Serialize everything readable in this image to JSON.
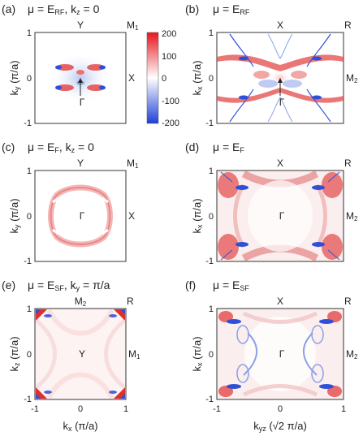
{
  "figure": {
    "panels": [
      {
        "id": "a",
        "tag": "(a)",
        "title_sym": "μ = E",
        "title_sub": "RF",
        "title_extra": ", k",
        "title_extra_sub": "z",
        "title_tail": " = 0",
        "top_center": "Y",
        "top_right": "M",
        "top_right_sub": "1",
        "right_mid": "X",
        "center": "Γ",
        "ylabel": "k",
        "ylabel_sub": "y",
        "ylabel_tail": " (π/a)",
        "arrow": true
      },
      {
        "id": "b",
        "tag": "(b)",
        "title_sym": "μ = E",
        "title_sub": "RF",
        "title_extra": "",
        "title_extra_sub": "",
        "title_tail": "",
        "top_center": "X",
        "top_right": "R",
        "top_right_sub": "",
        "right_mid": "M",
        "right_mid_sub": "2",
        "center": "Γ",
        "ylabel": "k",
        "ylabel_sub": "x",
        "ylabel_tail": " (π/a)",
        "arrow": true
      },
      {
        "id": "c",
        "tag": "(c)",
        "title_sym": "μ = E",
        "title_sub": "F",
        "title_extra": ", k",
        "title_extra_sub": "z",
        "title_tail": " = 0",
        "top_center": "Y",
        "top_right": "M",
        "top_right_sub": "1",
        "right_mid": "X",
        "center": "Γ",
        "ylabel": "k",
        "ylabel_sub": "y",
        "ylabel_tail": " (π/a)"
      },
      {
        "id": "d",
        "tag": "(d)",
        "title_sym": "μ = E",
        "title_sub": "F",
        "title_extra": "",
        "title_extra_sub": "",
        "title_tail": "",
        "top_center": "X",
        "top_right": "R",
        "top_right_sub": "",
        "right_mid": "M",
        "right_mid_sub": "2",
        "center": "Γ",
        "ylabel": "k",
        "ylabel_sub": "x",
        "ylabel_tail": " (π/a)"
      },
      {
        "id": "e",
        "tag": "(e)",
        "title_sym": "μ = E",
        "title_sub": "SF",
        "title_extra": ", k",
        "title_extra_sub": "y",
        "title_tail": " = π/a",
        "top_center": "M",
        "top_center_sub": "2",
        "top_right": "R",
        "top_right_sub": "",
        "right_mid": "M",
        "right_mid_sub": "1",
        "center": "Y",
        "ylabel": "k",
        "ylabel_sub": "z",
        "ylabel_tail": " (π/a)"
      },
      {
        "id": "f",
        "tag": "(f)",
        "title_sym": "μ = E",
        "title_sub": "SF",
        "title_extra": "",
        "title_extra_sub": "",
        "title_tail": "",
        "top_center": "X",
        "top_right": "R",
        "top_right_sub": "",
        "right_mid": "M",
        "right_mid_sub": "2",
        "center": "Γ",
        "ylabel": "k",
        "ylabel_sub": "x",
        "ylabel_tail": " (π/a)"
      }
    ],
    "tick_labels": [
      "-1",
      "0",
      "1"
    ],
    "xlabel_left": {
      "base": "k",
      "sub": "x",
      "tail": " (π/a)"
    },
    "xlabel_right": {
      "base": "k",
      "sub": "yz",
      "tail": " (√2 π/a)"
    },
    "colorbar": {
      "ticks": [
        "200",
        "100",
        "0",
        "-100",
        "-200"
      ],
      "max_color": "#e8151b",
      "min_color": "#1f3fd8",
      "mid_color": "#ffffff"
    }
  }
}
